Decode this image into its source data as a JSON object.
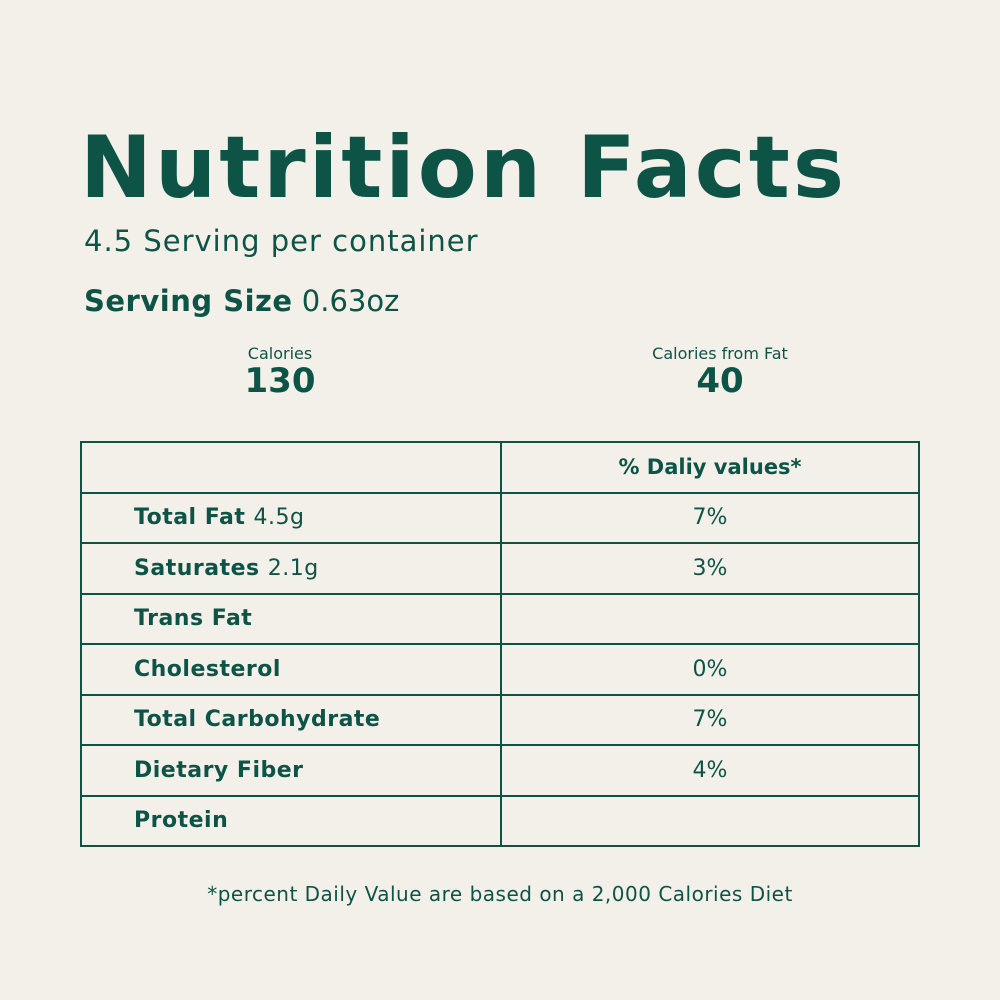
{
  "title": "Nutrition Facts",
  "servings_per_container": "4.5 Serving per container",
  "serving_size": {
    "label": "Serving Size",
    "value": "0.63oz"
  },
  "calories": {
    "label": "Calories",
    "value": "130"
  },
  "calories_from_fat": {
    "label": "Calories from Fat",
    "value": "40"
  },
  "table": {
    "header": {
      "name": "",
      "daily_value": "% Daliy values*"
    },
    "rows": [
      {
        "name": "Total Fat",
        "amount": "4.5g",
        "daily_value": "7%"
      },
      {
        "name": "Saturates",
        "amount": "2.1g",
        "daily_value": "3%"
      },
      {
        "name": "Trans Fat",
        "amount": "",
        "daily_value": ""
      },
      {
        "name": "Cholesterol",
        "amount": "",
        "daily_value": "0%"
      },
      {
        "name": "Total Carbohydrate",
        "amount": "",
        "daily_value": "7%"
      },
      {
        "name": "Dietary Fiber",
        "amount": "",
        "daily_value": "4%"
      },
      {
        "name": "Protein",
        "amount": "",
        "daily_value": ""
      }
    ]
  },
  "footnote": "*percent Daily Value are based on a 2,000 Calories Diet",
  "colors": {
    "text": "#0d5447",
    "background": "#f3f0ea"
  }
}
